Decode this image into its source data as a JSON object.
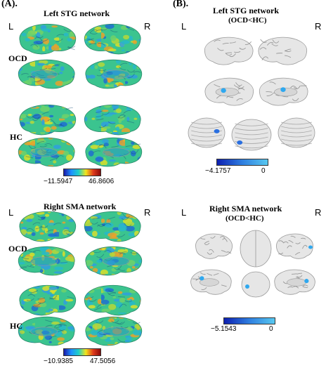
{
  "panels": {
    "a": {
      "label": "(A).",
      "blocks": [
        {
          "title": "Left STG network",
          "left_label": "L",
          "right_label": "R",
          "groups": [
            "OCD",
            "HC"
          ],
          "colorbar": {
            "min": "−11.5947",
            "max": "46.8606",
            "colors": [
              "#1a1aa8",
              "#1e90ff",
              "#1fd0c8",
              "#f2e41b",
              "#e03a1b",
              "#8b0a0a"
            ]
          }
        },
        {
          "title": "Right SMA network",
          "left_label": "L",
          "right_label": "R",
          "groups": [
            "OCD",
            "HC"
          ],
          "colorbar": {
            "min": "−10.9385",
            "max": "47.5056",
            "colors": [
              "#1a1aa8",
              "#1e90ff",
              "#1fd0c8",
              "#f2e41b",
              "#e03a1b",
              "#8b0a0a"
            ]
          }
        }
      ]
    },
    "b": {
      "label": "(B).",
      "blocks": [
        {
          "title": "Left STG network",
          "subtitle": "(OCD<HC)",
          "left_label": "L",
          "right_label": "R",
          "colorbar": {
            "min": "−4.1757",
            "max": "0",
            "colors": [
              "#0d1fb0",
              "#2f7fe0",
              "#58c8f0"
            ]
          }
        },
        {
          "title": "Right SMA network",
          "subtitle": "(OCD<HC)",
          "left_label": "L",
          "right_label": "R",
          "colorbar": {
            "min": "−5.1543",
            "max": "0",
            "colors": [
              "#0d1fb0",
              "#2f7fe0",
              "#58c8f0"
            ]
          }
        }
      ]
    }
  }
}
